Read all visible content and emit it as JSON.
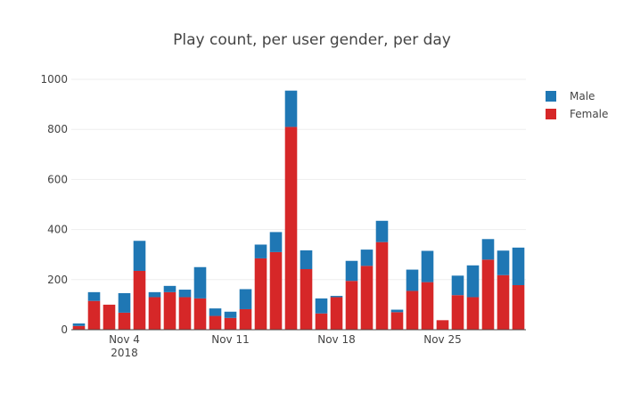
{
  "chart_data": {
    "type": "bar",
    "stacked": true,
    "title": "Play count, per user gender, per day",
    "xlabel": "",
    "ylabel": "",
    "ylim": [
      0,
      1050
    ],
    "yticks": [
      0,
      200,
      400,
      600,
      800,
      1000
    ],
    "x_start": "2018-11-01",
    "x_end": "2018-11-30",
    "x_tick_labels": [
      {
        "date": "2018-11-04",
        "label": "Nov 4",
        "sublabel": "2018"
      },
      {
        "date": "2018-11-11",
        "label": "Nov 11",
        "sublabel": ""
      },
      {
        "date": "2018-11-18",
        "label": "Nov 18",
        "sublabel": ""
      },
      {
        "date": "2018-11-25",
        "label": "Nov 25",
        "sublabel": ""
      }
    ],
    "grid": true,
    "legend_position": "top-right",
    "series": [
      {
        "name": "Female",
        "color": "#d62728",
        "values": [
          15,
          115,
          100,
          68,
          235,
          130,
          150,
          130,
          125,
          55,
          47,
          82,
          285,
          310,
          810,
          242,
          65,
          130,
          195,
          255,
          350,
          70,
          155,
          190,
          38,
          138,
          130,
          280,
          218,
          178
        ]
      },
      {
        "name": "Male",
        "color": "#1f77b4",
        "values": [
          10,
          35,
          0,
          78,
          120,
          20,
          25,
          30,
          125,
          30,
          25,
          80,
          55,
          80,
          145,
          75,
          60,
          5,
          80,
          65,
          85,
          10,
          85,
          125,
          0,
          78,
          127,
          82,
          98,
          150
        ]
      }
    ]
  }
}
